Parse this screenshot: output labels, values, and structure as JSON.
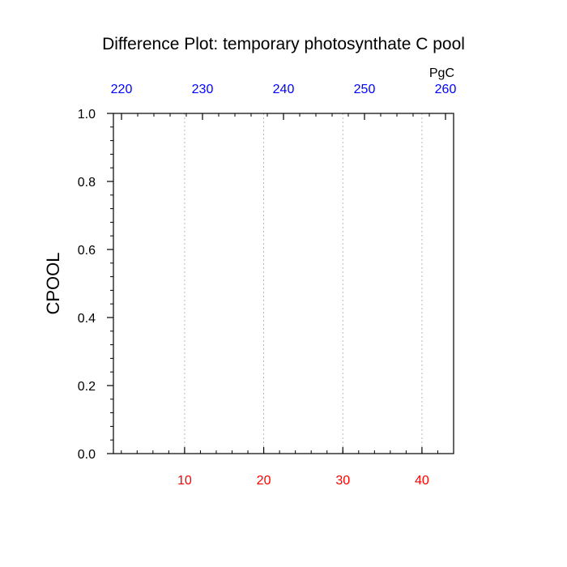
{
  "chart_data": {
    "type": "line",
    "title": "Difference Plot: temporary photosynthate C pool",
    "ylabel": "CPOOL",
    "top_axis_unit": "PgC",
    "x_bottom": {
      "range": [
        1,
        44
      ],
      "ticks": [
        10,
        20,
        30,
        40
      ],
      "minor_step": 2,
      "color": "#ff0000"
    },
    "x_top": {
      "range": [
        219,
        261
      ],
      "ticks": [
        220,
        230,
        240,
        250,
        260
      ],
      "minor_step": 2,
      "color": "#0000ff"
    },
    "y": {
      "range": [
        0,
        1
      ],
      "ticks": [
        "0.0",
        "0.2",
        "0.4",
        "0.6",
        "0.8",
        "1.0"
      ],
      "minor_step": 0.04
    },
    "vertical_gridlines": [
      10,
      20,
      30,
      40
    ],
    "series": []
  }
}
